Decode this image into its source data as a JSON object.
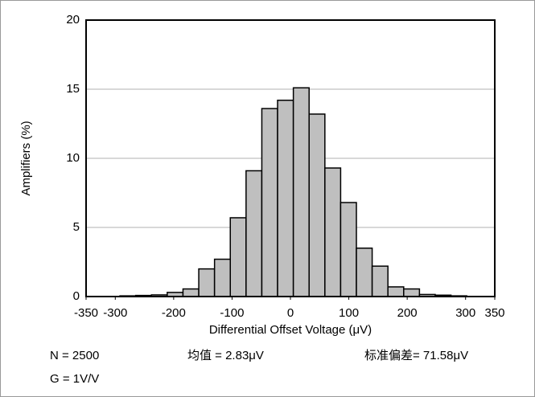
{
  "chart_data": {
    "type": "histogram",
    "xlabel": "Differential Offset Voltage (μV)",
    "ylabel": "Amplifiers (%)",
    "bins": [
      -292,
      -265,
      -238,
      -211,
      -184,
      -157,
      -130,
      -103,
      -76,
      -49,
      -22,
      5,
      32,
      59,
      86,
      113,
      140,
      167,
      194,
      221,
      248,
      275,
      302
    ],
    "counts": [
      0.05,
      0.08,
      0.12,
      0.3,
      0.55,
      2.0,
      2.7,
      5.7,
      9.1,
      13.6,
      14.2,
      15.1,
      13.2,
      9.3,
      6.8,
      3.5,
      2.2,
      0.7,
      0.55,
      0.15,
      0.1,
      0.05
    ],
    "color": "#bfbfbf",
    "xlim": [
      -350,
      350
    ],
    "xticks": [
      -350,
      -300,
      -200,
      -100,
      0,
      100,
      200,
      300,
      350
    ],
    "ylim": [
      0,
      20
    ],
    "yticks": [
      0,
      5,
      10,
      15,
      20
    ],
    "grid": true,
    "annotations": [
      "N = 2500",
      "均值 = 2.83μV",
      "标准偏差= 71.58μV",
      "G = 1V/V"
    ]
  }
}
